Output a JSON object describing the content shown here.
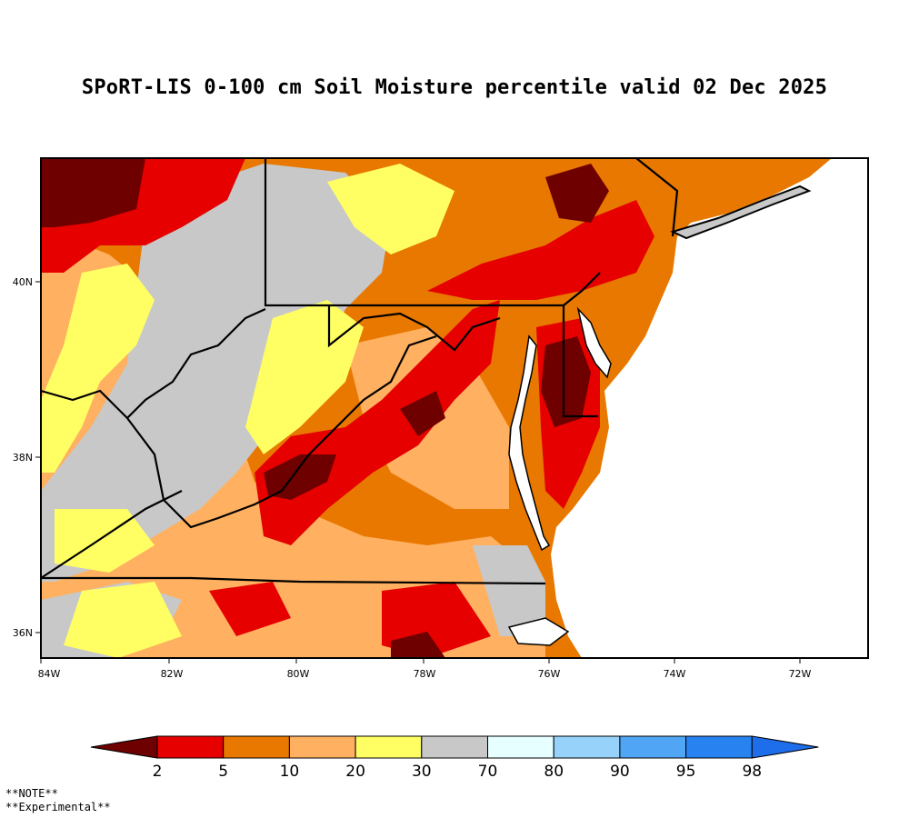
{
  "title": "SPoRT-LIS 0-100 cm Soil Moisture percentile valid 02 Dec 2025",
  "map": {
    "lon_ticks": [
      "84W",
      "82W",
      "80W",
      "78W",
      "76W",
      "74W",
      "72W"
    ],
    "lat_ticks": [
      "40N",
      "38N",
      "36N"
    ],
    "lon_range": [
      -84,
      -71
    ],
    "lat_range": [
      35.7,
      41.4
    ]
  },
  "colorbar": {
    "labels": [
      "2",
      "5",
      "10",
      "20",
      "30",
      "70",
      "80",
      "90",
      "95",
      "98"
    ],
    "colors": [
      "#6e0000",
      "#e60000",
      "#e87800",
      "#ffb060",
      "#ffff64",
      "#c8c8c8",
      "#e6ffff",
      "#96d2fa",
      "#50a5f5",
      "#2882f0",
      "#1e6eeb"
    ]
  },
  "note": {
    "line1": "**NOTE**",
    "line2": "**Experimental**"
  }
}
